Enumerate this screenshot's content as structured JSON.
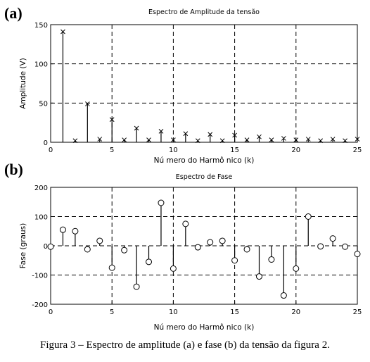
{
  "chart_data": [
    {
      "panel": "(a)",
      "type": "stem",
      "marker": "x",
      "title": "Espectro de Amplitude da tensão",
      "xlabel": "Nú mero do Harmô nico (k)",
      "ylabel": "Amplitude (V)",
      "xlim": [
        0,
        25
      ],
      "ylim": [
        0,
        150
      ],
      "xticks": [
        0,
        5,
        10,
        15,
        20,
        25
      ],
      "yticks": [
        0,
        50,
        100,
        150
      ],
      "grid": true,
      "x": [
        1,
        2,
        3,
        4,
        5,
        6,
        7,
        8,
        9,
        10,
        11,
        12,
        13,
        14,
        15,
        16,
        17,
        18,
        19,
        20,
        21,
        22,
        23,
        24,
        25
      ],
      "values": [
        141,
        2,
        49,
        4,
        29,
        3,
        18,
        3,
        14,
        3,
        11,
        2,
        10,
        2,
        9,
        3,
        7,
        3,
        5,
        3,
        4,
        2,
        4,
        2,
        4
      ]
    },
    {
      "panel": "(b)",
      "type": "stem",
      "marker": "o",
      "title": "Espectro de Fase",
      "xlabel": "Nú mero do Harmô nico (k)",
      "ylabel": "Fase (graus)",
      "xlim": [
        0,
        25
      ],
      "ylim": [
        -200,
        200
      ],
      "xticks": [
        0,
        5,
        10,
        15,
        20,
        25
      ],
      "yticks": [
        -200,
        -100,
        0,
        100,
        200
      ],
      "grid": true,
      "x": [
        0,
        1,
        2,
        3,
        4,
        5,
        6,
        7,
        8,
        9,
        10,
        11,
        12,
        13,
        14,
        15,
        16,
        17,
        18,
        19,
        20,
        21,
        22,
        23,
        24,
        25
      ],
      "values": [
        -3,
        55,
        50,
        -12,
        17,
        -75,
        -15,
        -140,
        -55,
        147,
        -78,
        75,
        -5,
        12,
        17,
        -50,
        -12,
        -105,
        -47,
        -170,
        -78,
        100,
        -2,
        25,
        -3,
        -28
      ]
    }
  ],
  "caption": "Figura 3 – Espectro de amplitude (a) e fase (b)  da tensão da figura 2."
}
